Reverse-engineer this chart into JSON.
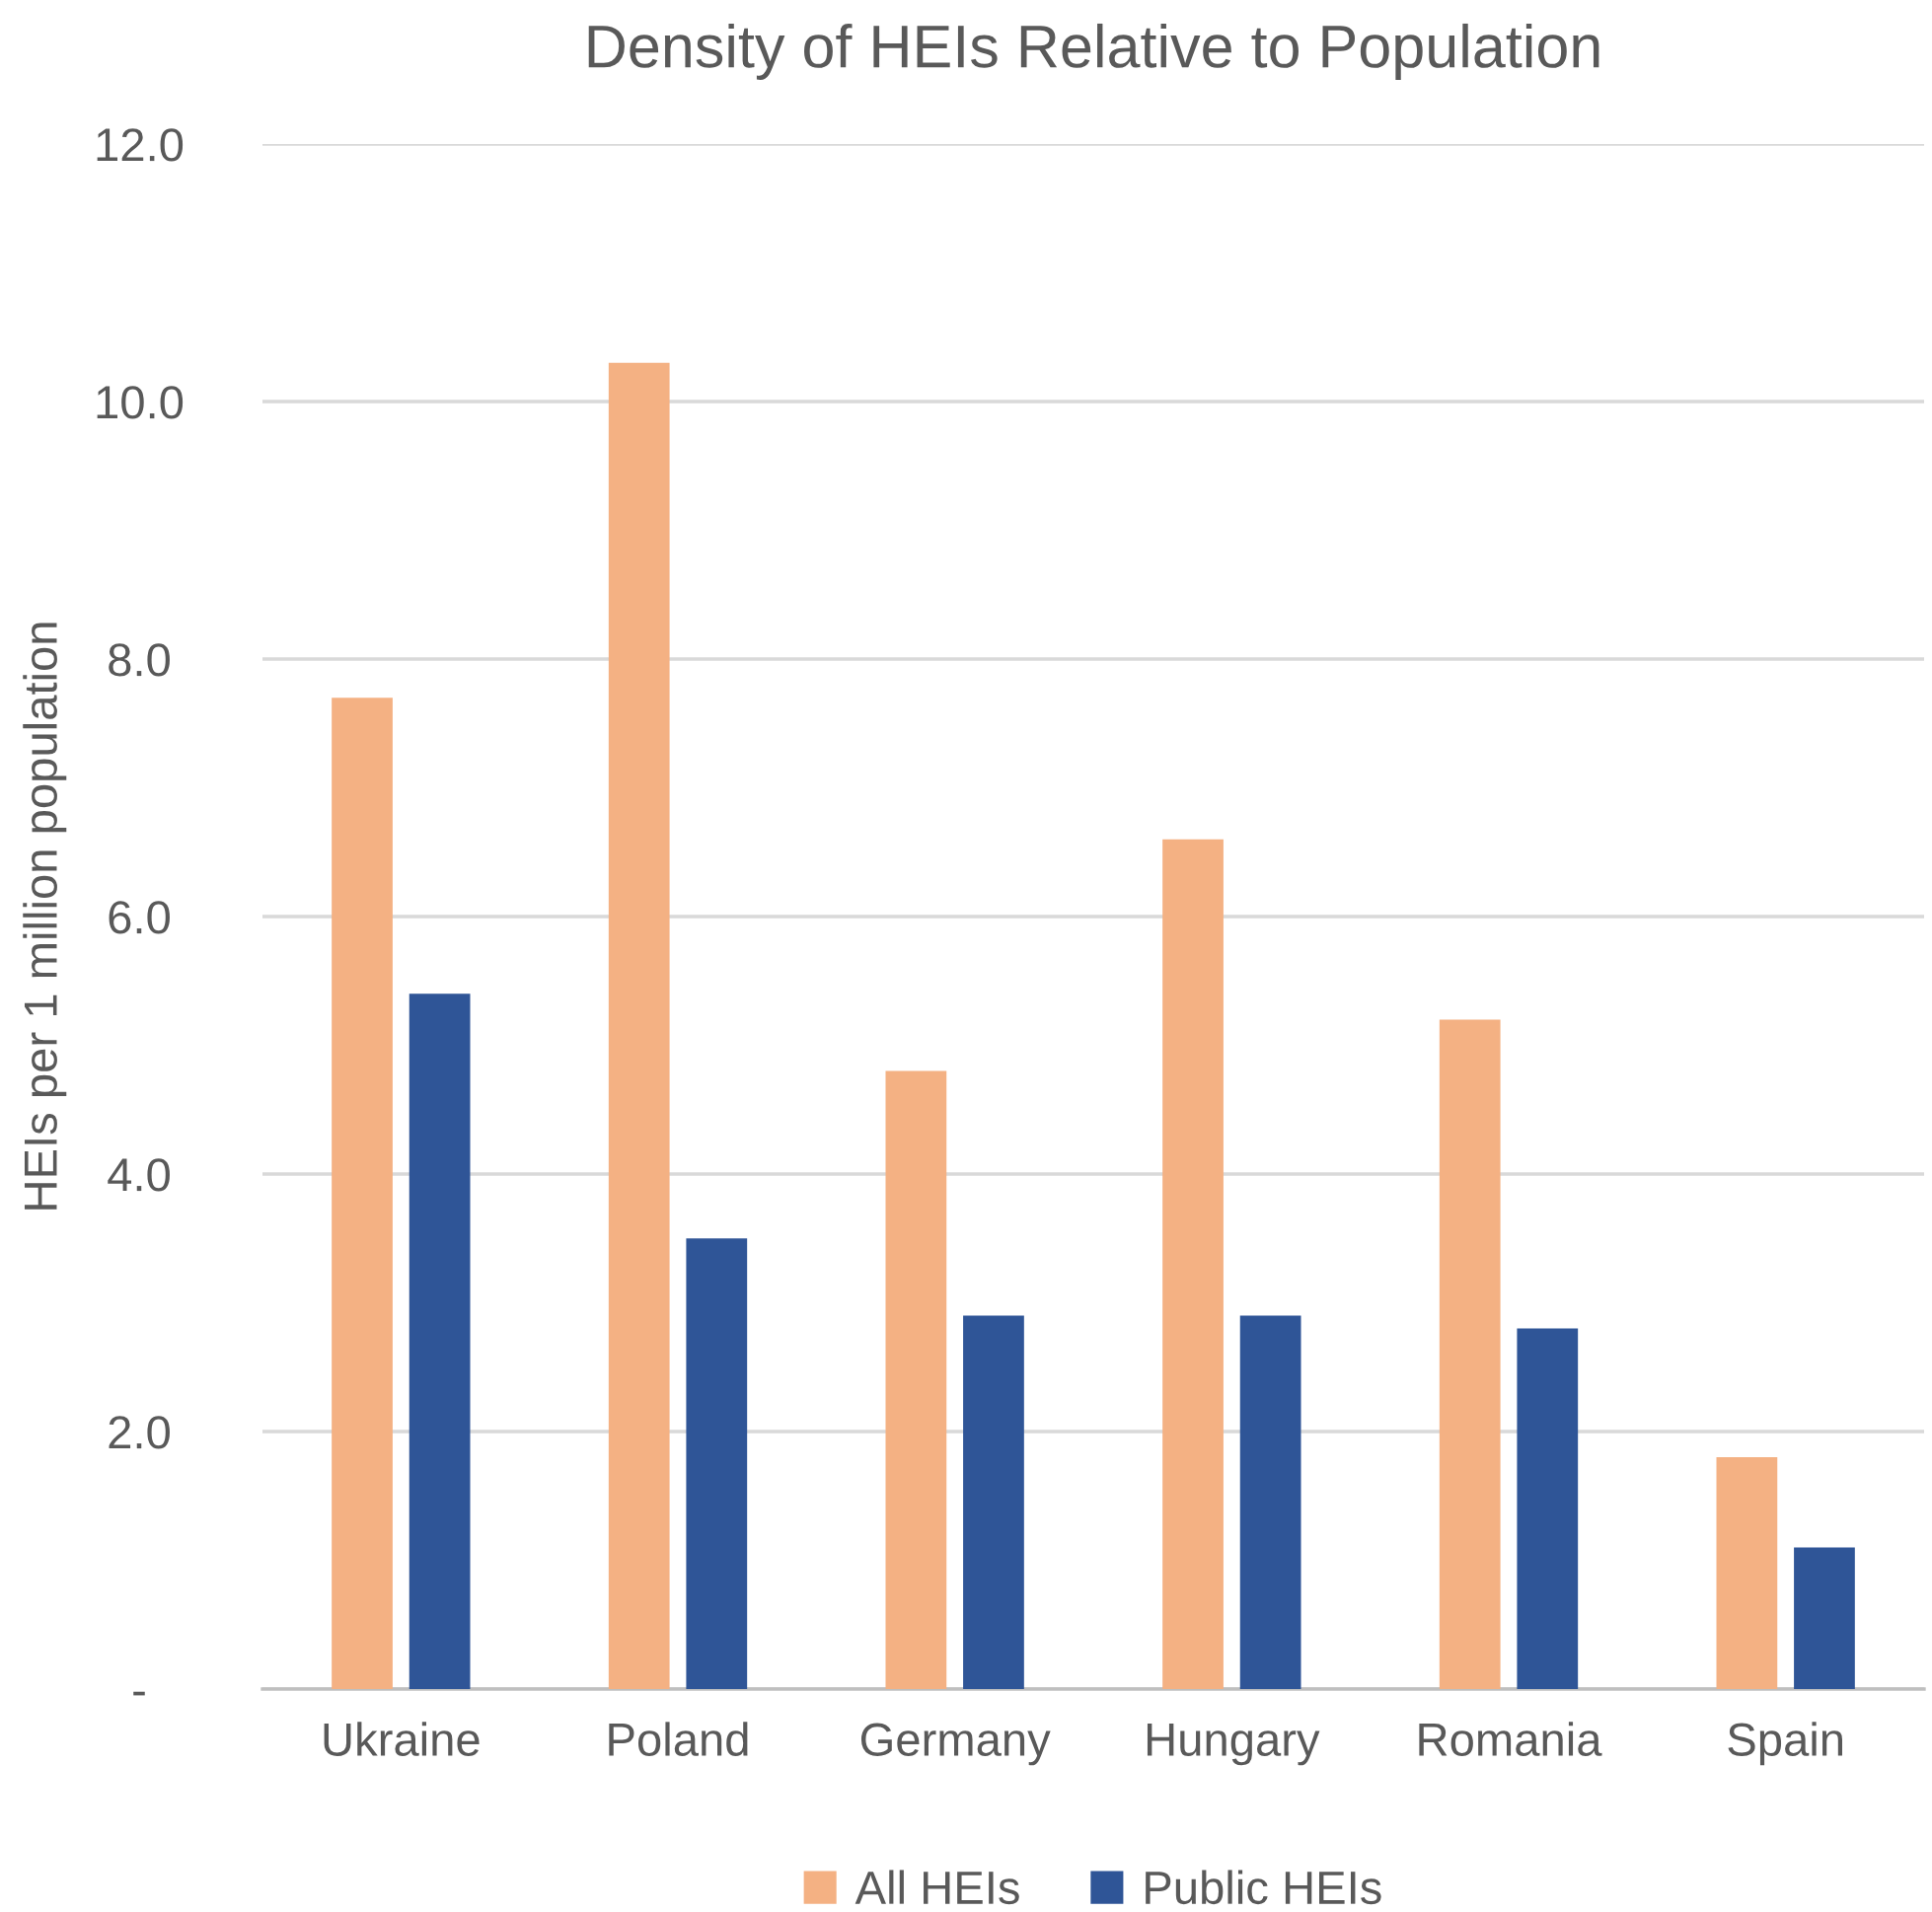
{
  "chart_data": {
    "type": "bar",
    "title": "Density of HEIs Relative to Population",
    "ylabel": "HEIs per 1 million population",
    "categories": [
      "Ukraine",
      "Poland",
      "Germany",
      "Hungary",
      "Romania",
      "Spain"
    ],
    "series": [
      {
        "name": "All HEIs",
        "color": "#f4b183",
        "values": [
          7.7,
          10.3,
          4.8,
          6.6,
          5.2,
          1.8
        ]
      },
      {
        "name": "Public HEIs",
        "color": "#2f5597",
        "values": [
          5.4,
          3.5,
          2.9,
          2.9,
          2.8,
          1.1
        ]
      }
    ],
    "ylim": [
      0,
      12
    ],
    "yticks": [
      {
        "value": 0,
        "label": "-"
      },
      {
        "value": 2,
        "label": "2.0"
      },
      {
        "value": 4,
        "label": "4.0"
      },
      {
        "value": 6,
        "label": "6.0"
      },
      {
        "value": 8,
        "label": "8.0"
      },
      {
        "value": 10,
        "label": "10.0"
      },
      {
        "value": 12,
        "label": "12.0"
      }
    ],
    "grid": "y",
    "legend": "bottom"
  }
}
